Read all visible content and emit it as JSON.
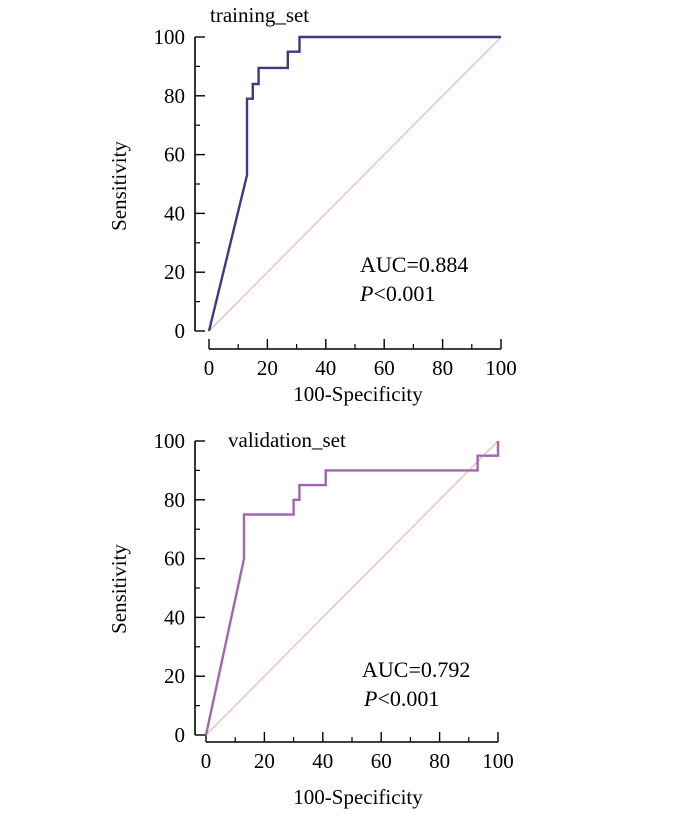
{
  "chart_data": [
    {
      "type": "line",
      "title": "training_set",
      "xlabel": "100-Specificity",
      "ylabel": "Sensitivity",
      "xlim": [
        0,
        100
      ],
      "ylim": [
        0,
        100
      ],
      "xticks": [
        "0",
        "20",
        "40",
        "60",
        "80",
        "100"
      ],
      "yticks": [
        "0",
        "20",
        "40",
        "60",
        "80",
        "100"
      ],
      "xtick_values": [
        0,
        20,
        40,
        60,
        80,
        100
      ],
      "ytick_values": [
        0,
        20,
        40,
        60,
        80,
        100
      ],
      "auc_label": "AUC=0.884",
      "p_symbol": "P",
      "p_value": "<0.001",
      "series": [
        {
          "name": "ROC",
          "color": "#3b3b85",
          "x": [
            0,
            13,
            13,
            15,
            15,
            17,
            17,
            27,
            27,
            31,
            31,
            100
          ],
          "y": [
            0,
            53,
            79,
            79,
            84,
            84,
            89.5,
            89.5,
            95,
            95,
            100,
            100
          ]
        },
        {
          "name": "reference",
          "color": "#e8a8a0",
          "x": [
            0,
            100
          ],
          "y": [
            0,
            100
          ]
        }
      ]
    },
    {
      "type": "line",
      "title": "validation_set",
      "xlabel": "100-Specificity",
      "ylabel": "Sensitivity",
      "xlim": [
        0,
        100
      ],
      "ylim": [
        0,
        100
      ],
      "xticks": [
        "0",
        "20",
        "40",
        "60",
        "80",
        "100"
      ],
      "yticks": [
        "0",
        "20",
        "40",
        "60",
        "80",
        "100"
      ],
      "xtick_values": [
        0,
        20,
        40,
        60,
        80,
        100
      ],
      "ytick_values": [
        0,
        20,
        40,
        60,
        80,
        100
      ],
      "auc_label": "AUC=0.792",
      "p_symbol": "P",
      "p_value": "<0.001",
      "series": [
        {
          "name": "ROC",
          "color": "#a066b0",
          "x": [
            0,
            13,
            13,
            30,
            30,
            32,
            32,
            41,
            41,
            93,
            93,
            100,
            100
          ],
          "y": [
            0,
            60,
            75,
            75,
            80,
            80,
            85,
            85,
            90,
            90,
            95,
            95,
            100
          ]
        },
        {
          "name": "reference",
          "color": "#e8a8a0",
          "x": [
            0,
            100
          ],
          "y": [
            0,
            100
          ]
        }
      ]
    }
  ]
}
